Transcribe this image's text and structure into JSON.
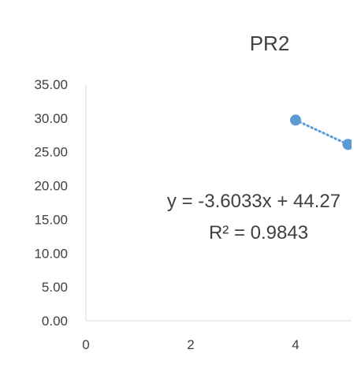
{
  "chart_data": {
    "type": "scatter",
    "title": "PR2",
    "xlim": [
      0,
      5
    ],
    "ylim": [
      0,
      35
    ],
    "x_ticks": [
      "0",
      "2",
      "4"
    ],
    "y_ticks": [
      "0.00",
      "5.00",
      "10.00",
      "15.00",
      "20.00",
      "25.00",
      "30.00",
      "35.00"
    ],
    "grid": false,
    "legend": "none",
    "series": [
      {
        "points": [
          {
            "x": 4,
            "y": 29.7
          },
          {
            "x": 5,
            "y": 26.1
          }
        ],
        "color": "#5b9bd5",
        "trendline": {
          "type": "linear",
          "style": "dotted",
          "color": "#5b9bd5",
          "slope": -3.6033,
          "intercept": 44.27
        }
      }
    ],
    "trendline_label": {
      "equation": "y = -3.6033x + 44.27",
      "r_squared": "R² = 0.9843"
    }
  }
}
